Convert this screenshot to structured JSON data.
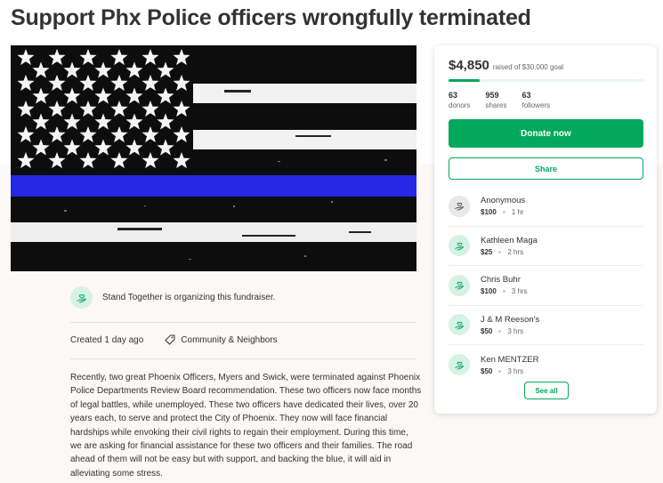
{
  "campaign": {
    "title": "Support Phx Police officers wrongfully terminated",
    "organizer_text": "Stand Together is organizing this fundraiser.",
    "created": "Created 1 day ago",
    "category": "Community & Neighbors",
    "story": "Recently,  two  great Phoenix Officers, Myers and Swick, were terminated against Phoenix Police Departments Review Board recommendation.  These two officers now face months of legal battles, while unemployed.  These two officers have dedicated their lives, over 20 years each,  to serve and protect the City of Phoenix.  They now will face financial hardships while envoking their civil rights to regain their employment.  During this time,  we are asking for financial assistance for these two officers and their families.  The road ahead of them will not be easy but with support, and backing the blue, it will aid in alleviating some stress."
  },
  "progress": {
    "raised": "$4,850",
    "goal_text": "raised of $30,000 goal",
    "fraction": 0.162,
    "stats": [
      {
        "num": "63",
        "label": "donors"
      },
      {
        "num": "959",
        "label": "shares"
      },
      {
        "num": "63",
        "label": "followers"
      }
    ]
  },
  "actions": {
    "donate": "Donate now",
    "share": "Share",
    "see_all": "See all"
  },
  "donations": [
    {
      "name": "Anonymous",
      "amount": "$100",
      "time": "1 hr",
      "avatar": "gray"
    },
    {
      "name": "Kathleen Maga",
      "amount": "$25",
      "time": "2 hrs",
      "avatar": "green"
    },
    {
      "name": "Chris Buhr",
      "amount": "$100",
      "time": "3 hrs",
      "avatar": "green"
    },
    {
      "name": "J & M Reeson's",
      "amount": "$50",
      "time": "3 hrs",
      "avatar": "green"
    },
    {
      "name": "Ken MENTZER",
      "amount": "$50",
      "time": "3 hrs",
      "avatar": "green"
    }
  ],
  "icons": {
    "heart_hand": "heart-in-hand-icon",
    "tag": "tag-icon"
  },
  "colors": {
    "accent": "#02a95c",
    "flag_stripe": "#2727e6"
  }
}
